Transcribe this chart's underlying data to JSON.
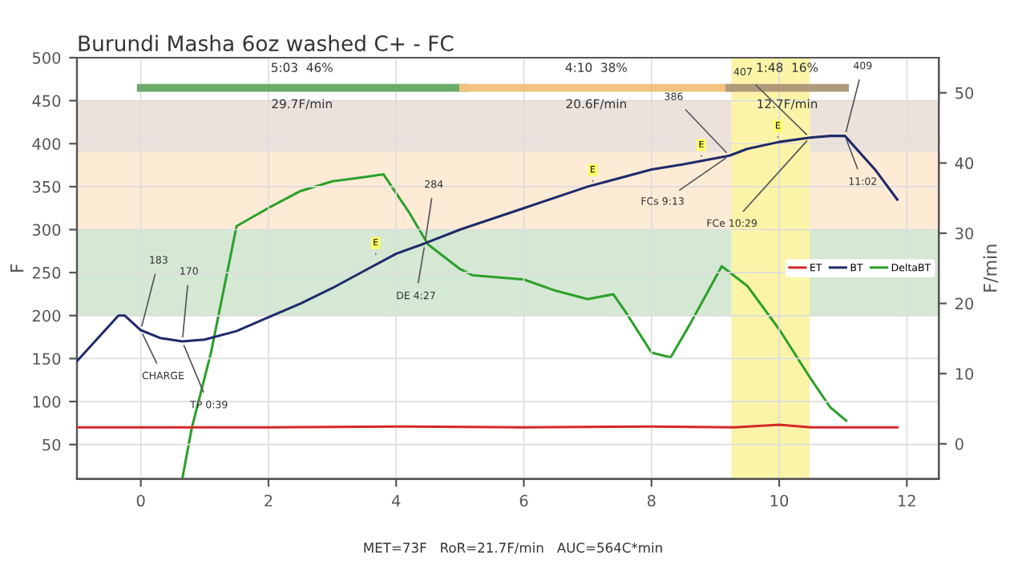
{
  "chart_data": {
    "type": "line",
    "title": "Burundi Masha 6oz washed C+ - FC",
    "ylabel": "F",
    "y2label": "F/min",
    "xlim": [
      -1,
      12.5
    ],
    "xticks": [
      0,
      2,
      4,
      6,
      8,
      10,
      12
    ],
    "ylim": [
      10,
      500
    ],
    "yticks": [
      50,
      100,
      150,
      200,
      250,
      300,
      350,
      400,
      450,
      500
    ],
    "y2lim": [
      -5,
      55
    ],
    "y2ticks": [
      0,
      10,
      20,
      30,
      40,
      50
    ],
    "grid": true,
    "legend": "right",
    "line_style": "solid",
    "marker": "none",
    "series": [
      {
        "name": "ET",
        "color": "#d62728",
        "x": [
          -1,
          2,
          4,
          6,
          8,
          9.3,
          10,
          10.5,
          11.85
        ],
        "values": [
          70,
          70,
          71,
          70,
          71,
          70,
          73,
          70,
          70
        ]
      },
      {
        "name": "BT",
        "color": "#1f2a6b",
        "x": [
          -1,
          -0.35,
          -0.25,
          0,
          0.3,
          0.65,
          1,
          1.5,
          2,
          2.5,
          3,
          3.5,
          4,
          4.45,
          5,
          6,
          7,
          7.5,
          8,
          8.5,
          9.22,
          9.5,
          10,
          10.48,
          10.8,
          11.03,
          11.5,
          11.85
        ],
        "values": [
          147,
          200,
          200,
          183,
          174,
          170,
          172,
          182,
          198,
          214,
          232,
          252,
          272,
          284,
          300,
          325,
          350,
          360,
          370,
          376,
          386,
          394,
          402,
          407,
          409,
          409,
          370,
          335
        ]
      },
      {
        "name": "DeltaBT",
        "color": "#2ca02c",
        "axis": "y2",
        "x": [
          0.65,
          0.8,
          1.1,
          1.5,
          2,
          2.5,
          3,
          3.5,
          3.8,
          4.2,
          4.5,
          5,
          5.2,
          6,
          6.5,
          7,
          7.4,
          7.6,
          8,
          8.3,
          8.6,
          9.1,
          9.5,
          10,
          10.5,
          10.8,
          11.05
        ],
        "values": [
          -5,
          2.3,
          13,
          31,
          33.6,
          36,
          37.4,
          38,
          38.4,
          33,
          28.4,
          24.9,
          24,
          23.4,
          21.8,
          20.6,
          21.3,
          18.7,
          13,
          12.3,
          17,
          25.3,
          22.5,
          16.3,
          9.2,
          5.2,
          3.3
        ]
      },
      {
        "color": "#6aab6a",
        "x": [
          0,
          5.05
        ],
        "values": [
          465,
          465
        ]
      },
      {
        "color": "#f2c27f",
        "x": [
          5.05,
          9.22
        ],
        "values": [
          465,
          465
        ]
      },
      {
        "color": "#b09a7c",
        "x": [
          9.22,
          11.03
        ],
        "values": [
          465,
          465
        ]
      }
    ],
    "bands": [
      {
        "axis": "y",
        "from": 200,
        "to": 300,
        "color": "#d5e8d4"
      },
      {
        "axis": "y",
        "from": 300,
        "to": 390,
        "color": "#fdebd6"
      },
      {
        "axis": "y",
        "from": 390,
        "to": 450,
        "color": "#ece2dc"
      },
      {
        "axis": "x",
        "from": 9.25,
        "to": 10.48,
        "color": "#fbf4a8"
      }
    ],
    "annotations": [
      {
        "text": "183",
        "x": 0,
        "y": 183
      },
      {
        "text": "CHARGE",
        "x": 0,
        "y": 183
      },
      {
        "text": "170",
        "x": 0.65,
        "y": 170
      },
      {
        "text": "TP 0:39",
        "x": 0.65,
        "y": 170
      },
      {
        "text": "284",
        "x": 4.45,
        "y": 284
      },
      {
        "text": "DE 4:27",
        "x": 4.45,
        "y": 284
      },
      {
        "text": "386",
        "x": 9.22,
        "y": 386
      },
      {
        "text": "FCs 9:13",
        "x": 9.22,
        "y": 386
      },
      {
        "text": "407",
        "x": 10.48,
        "y": 407
      },
      {
        "text": "FCe 10:29",
        "x": 10.48,
        "y": 407
      },
      {
        "text": "409",
        "x": 11.03,
        "y": 409
      },
      {
        "text": "11:02",
        "x": 11.03,
        "y": 409
      },
      {
        "text": "E",
        "x": 3.68,
        "y": 266
      },
      {
        "text": "E",
        "x": 7.08,
        "y": 351
      },
      {
        "text": "E",
        "x": 8.78,
        "y": 380
      },
      {
        "text": "E",
        "x": 9.98,
        "y": 402
      },
      "5:03  46%",
      "29.7F/min",
      "4:10  38%",
      "20.6F/min",
      "1:48  16%",
      "12.7F/min",
      "MET=73F   RoR=21.7F/min   AUC=564C*min"
    ]
  }
}
